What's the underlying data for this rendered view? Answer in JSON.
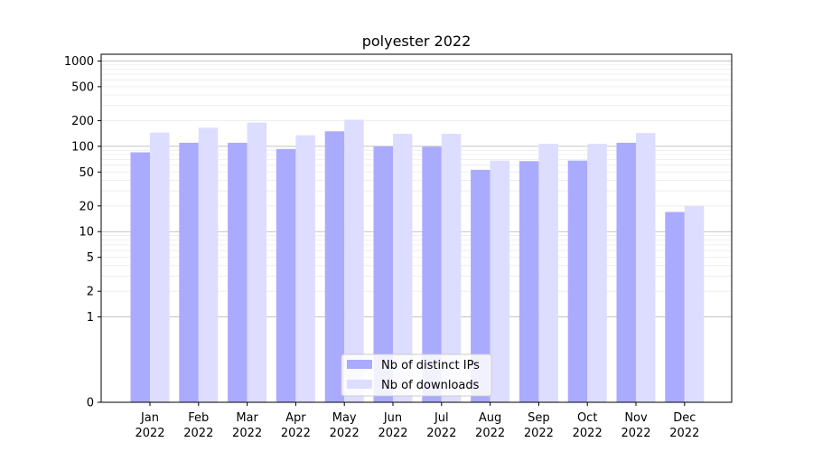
{
  "chart_data": {
    "type": "bar",
    "title": "polyester 2022",
    "xlabel": "",
    "ylabel": "",
    "scale": "symlog",
    "ylim": [
      0,
      1200
    ],
    "yticks": [
      0,
      1,
      2,
      5,
      10,
      20,
      50,
      100,
      200,
      500,
      1000
    ],
    "grid": true,
    "legend_position": "bottom-center",
    "categories": [
      {
        "month": "Jan",
        "year": "2022"
      },
      {
        "month": "Feb",
        "year": "2022"
      },
      {
        "month": "Mar",
        "year": "2022"
      },
      {
        "month": "Apr",
        "year": "2022"
      },
      {
        "month": "May",
        "year": "2022"
      },
      {
        "month": "Jun",
        "year": "2022"
      },
      {
        "month": "Jul",
        "year": "2022"
      },
      {
        "month": "Aug",
        "year": "2022"
      },
      {
        "month": "Sep",
        "year": "2022"
      },
      {
        "month": "Oct",
        "year": "2022"
      },
      {
        "month": "Nov",
        "year": "2022"
      },
      {
        "month": "Dec",
        "year": "2022"
      }
    ],
    "series": [
      {
        "name": "Nb of distinct IPs",
        "color": "#aaaaff",
        "values": [
          85,
          110,
          110,
          93,
          150,
          100,
          99,
          53,
          67,
          68,
          110,
          17
        ]
      },
      {
        "name": "Nb of downloads",
        "color": "#ddddff",
        "values": [
          145,
          165,
          190,
          135,
          205,
          140,
          140,
          68,
          107,
          107,
          143,
          20
        ]
      }
    ]
  }
}
